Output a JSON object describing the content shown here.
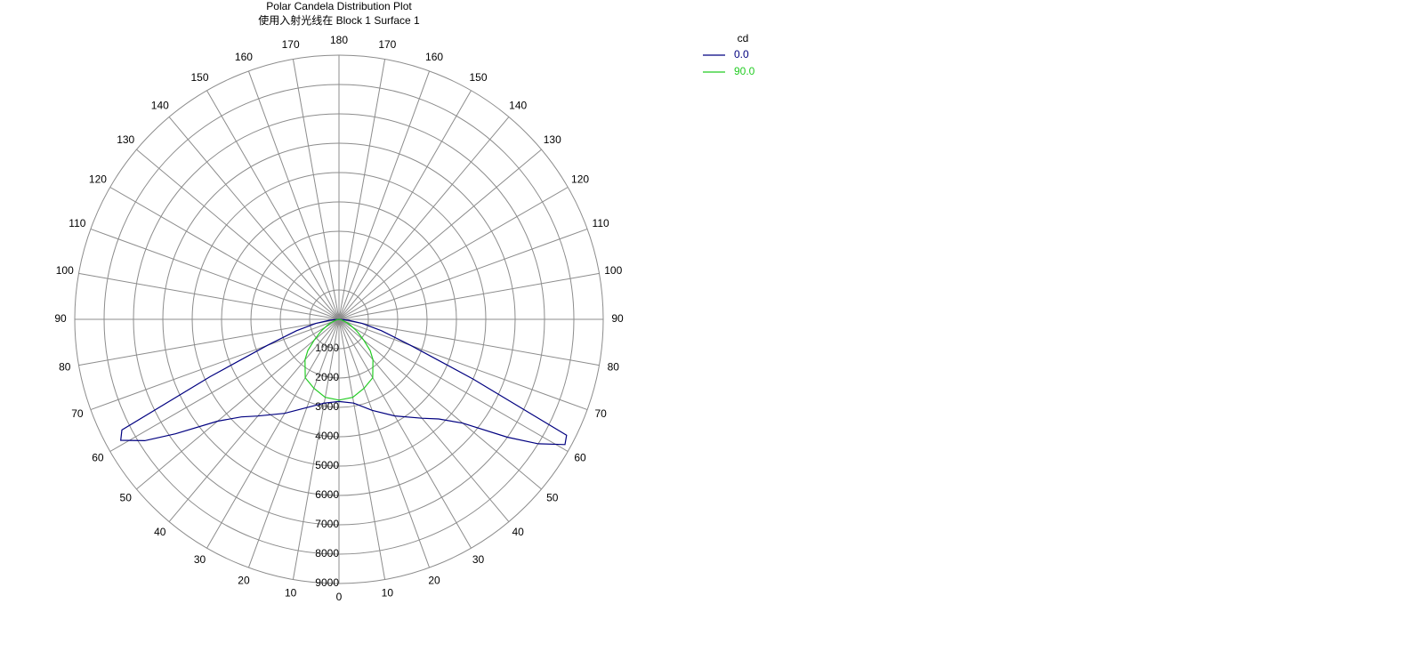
{
  "chart_data": {
    "type": "polar",
    "title": "Polar Candela Distribution Plot",
    "subtitle": "使用入射光线在 Block 1 Surface 1",
    "legend_title": "cd",
    "legend": "top-right",
    "x": [
      -90,
      -85,
      -80,
      -75,
      -70,
      -66,
      -63,
      -61,
      -58,
      -55,
      -50,
      -45,
      -40,
      -30,
      -20,
      -10,
      0,
      10,
      20,
      30,
      40,
      45,
      50,
      55,
      58,
      61,
      63,
      66,
      70,
      75,
      80,
      85,
      90
    ],
    "series": [
      {
        "name": "0.0",
        "color": "#000080",
        "values": [
          0,
          300,
          800,
          1500,
          2600,
          4800,
          8300,
          8500,
          7800,
          6800,
          5400,
          4700,
          4300,
          3700,
          3200,
          2900,
          2800,
          2900,
          3300,
          3800,
          4400,
          4800,
          5500,
          7000,
          8000,
          8800,
          8700,
          5000,
          2600,
          1500,
          800,
          300,
          0
        ]
      },
      {
        "name": "90.0",
        "color": "#22cc22",
        "values": [
          0,
          20,
          60,
          120,
          200,
          330,
          430,
          500,
          650,
          800,
          1100,
          1500,
          1800,
          2300,
          2500,
          2700,
          2750,
          2700,
          2500,
          2300,
          1800,
          1500,
          1100,
          800,
          650,
          500,
          430,
          330,
          200,
          120,
          60,
          20,
          0
        ]
      }
    ],
    "rlim": [
      0,
      9000
    ],
    "rticks": [
      1000,
      2000,
      3000,
      4000,
      5000,
      6000,
      7000,
      8000,
      9000
    ],
    "angle_ticks": [
      0,
      10,
      20,
      30,
      40,
      50,
      60,
      70,
      80,
      90,
      100,
      110,
      120,
      130,
      140,
      150,
      160,
      170,
      180
    ],
    "grid": true
  }
}
